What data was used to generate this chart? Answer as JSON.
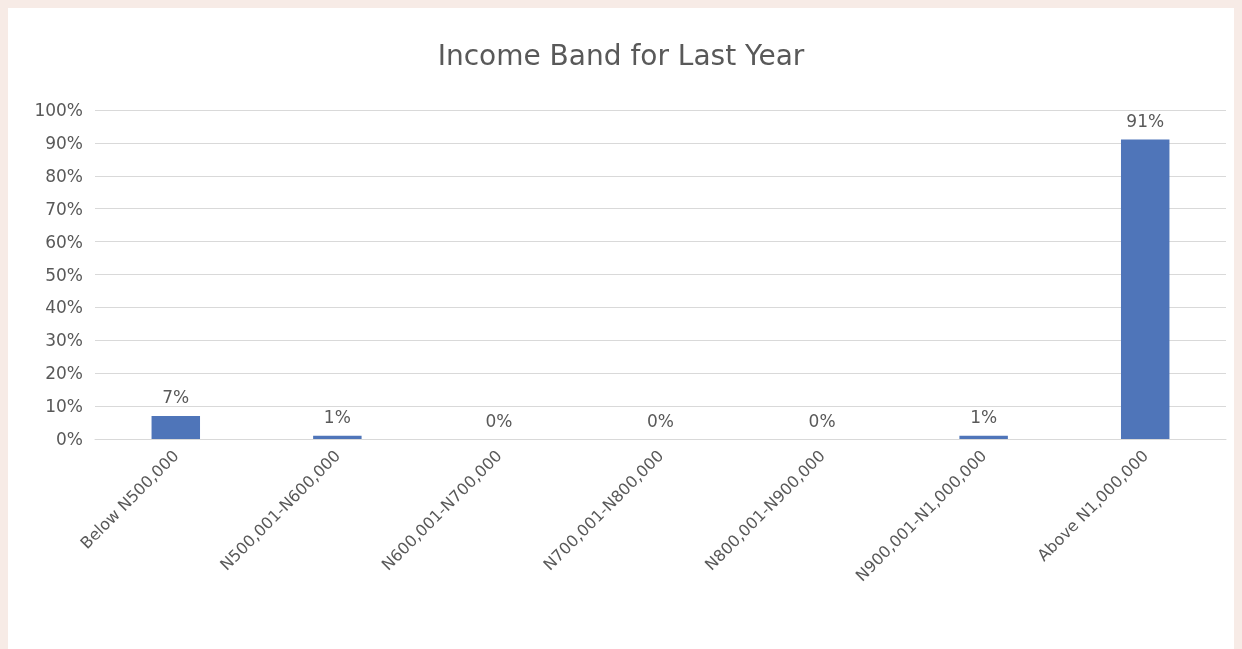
{
  "chart_data": {
    "type": "bar",
    "title": "Income Band for Last Year",
    "categories": [
      "Below N500,000",
      "N500,001-N600,000",
      "N600,001-N700,000",
      "N700,001-N800,000",
      "N800,001-N900,000",
      "N900,001-N1,000,000",
      "Above N1,000,000"
    ],
    "values": [
      7,
      1,
      0,
      0,
      0,
      1,
      91
    ],
    "value_labels": [
      "7%",
      "1%",
      "0%",
      "0%",
      "0%",
      "1%",
      "91%"
    ],
    "color": "#4f75b9",
    "ylim": [
      0,
      100
    ],
    "yticks": [
      {
        "value": 0,
        "label": "0%"
      },
      {
        "value": 10,
        "label": "10%"
      },
      {
        "value": 20,
        "label": "20%"
      },
      {
        "value": 30,
        "label": "30%"
      },
      {
        "value": 40,
        "label": "40%"
      },
      {
        "value": 50,
        "label": "50%"
      },
      {
        "value": 60,
        "label": "60%"
      },
      {
        "value": 70,
        "label": "70%"
      },
      {
        "value": 80,
        "label": "80%"
      },
      {
        "value": 90,
        "label": "90%"
      },
      {
        "value": 100,
        "label": "100%"
      }
    ],
    "grid": "y"
  }
}
